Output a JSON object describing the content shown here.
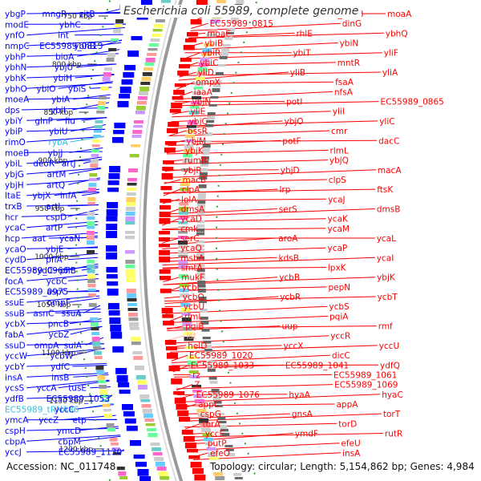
{
  "title": "Escherichia coli 55989, complete genome",
  "footer": {
    "accession_label": "Accession:",
    "accession": "NC_011748",
    "topology_label": "Topology:",
    "topology": "circular",
    "length_label": "Length:",
    "length": "5,154,862 bp",
    "genes_label": "Genes:",
    "genes": "4,984"
  },
  "colors": {
    "forward_strand": "#ff0000",
    "reverse_strand": "#0000ff",
    "rna": "#33c0e0",
    "backbone": "#999999",
    "gc_tick": "#33a033"
  },
  "ruler": [
    "750 kbp",
    "800 kbp",
    "850 kbp",
    "900 kbp",
    "950 kbp",
    "1000 kbp",
    "1050 kbp",
    "1100 kbp",
    "1150 kbp",
    "1200 kbp"
  ],
  "left_labels": [
    {
      "text": "ybgP",
      "color": "#0000ff"
    },
    {
      "text": "mngR",
      "color": "#0000ff"
    },
    {
      "text": "zitB",
      "color": "#0000ff"
    },
    {
      "text": "modE",
      "color": "#0000ff"
    },
    {
      "text": "ybhC",
      "color": "#0000ff"
    },
    {
      "text": "ynfO",
      "color": "#0000ff"
    },
    {
      "text": "int",
      "color": "#0000ff"
    },
    {
      "text": "nmpC",
      "color": "#0000ff"
    },
    {
      "text": "EC55989_0813",
      "color": "#0000ff"
    },
    {
      "text": "ybhB",
      "color": "#0000ff"
    },
    {
      "text": "ybhP",
      "color": "#0000ff"
    },
    {
      "text": "bioA",
      "color": "#0000ff"
    },
    {
      "text": "ybhN",
      "color": "#0000ff"
    },
    {
      "text": "ybjU",
      "color": "#0000ff"
    },
    {
      "text": "ybhK",
      "color": "#0000ff"
    },
    {
      "text": "ybiH",
      "color": "#0000ff"
    },
    {
      "text": "ybhO",
      "color": "#0000ff"
    },
    {
      "text": "ybiO",
      "color": "#0000ff"
    },
    {
      "text": "ybiS",
      "color": "#0000ff"
    },
    {
      "text": "moeA",
      "color": "#0000ff"
    },
    {
      "text": "ybiA",
      "color": "#0000ff"
    },
    {
      "text": "dps",
      "color": "#0000ff"
    },
    {
      "text": "ybiI",
      "color": "#0000ff"
    },
    {
      "text": "ybiY",
      "color": "#0000ff"
    },
    {
      "text": "glnP",
      "color": "#0000ff"
    },
    {
      "text": "fiu",
      "color": "#0000ff"
    },
    {
      "text": "ybiP",
      "color": "#0000ff"
    },
    {
      "text": "ybiU",
      "color": "#0000ff"
    },
    {
      "text": "rimO",
      "color": "#0000ff"
    },
    {
      "text": "rybA",
      "color": "#33c0e0"
    },
    {
      "text": "moeB",
      "color": "#0000ff"
    },
    {
      "text": "ybjJ",
      "color": "#0000ff"
    },
    {
      "text": "ybiL",
      "color": "#0000ff"
    },
    {
      "text": "deoR",
      "color": "#0000ff"
    },
    {
      "text": "artJ",
      "color": "#0000ff"
    },
    {
      "text": "ybjG",
      "color": "#0000ff"
    },
    {
      "text": "artM",
      "color": "#0000ff"
    },
    {
      "text": "ybjH",
      "color": "#0000ff"
    },
    {
      "text": "artQ",
      "color": "#0000ff"
    },
    {
      "text": "ltaE",
      "color": "#0000ff"
    },
    {
      "text": "ybjX",
      "color": "#0000ff"
    },
    {
      "text": "infA",
      "color": "#0000ff"
    },
    {
      "text": "trxB",
      "color": "#0000ff"
    },
    {
      "text": "artI",
      "color": "#0000ff"
    },
    {
      "text": "hcr",
      "color": "#0000ff"
    },
    {
      "text": "cspD",
      "color": "#0000ff"
    },
    {
      "text": "ycaC",
      "color": "#0000ff"
    },
    {
      "text": "artP",
      "color": "#0000ff"
    },
    {
      "text": "hcp",
      "color": "#0000ff"
    },
    {
      "text": "aat",
      "color": "#0000ff"
    },
    {
      "text": "ycaN",
      "color": "#0000ff"
    },
    {
      "text": "ycaO",
      "color": "#0000ff"
    },
    {
      "text": "ybjE",
      "color": "#0000ff"
    },
    {
      "text": "cydD",
      "color": "#0000ff"
    },
    {
      "text": "pflA",
      "color": "#0000ff"
    },
    {
      "text": "EC55989_0966",
      "color": "#0000ff"
    },
    {
      "text": "cydC",
      "color": "#0000ff"
    },
    {
      "text": "pflB",
      "color": "#0000ff"
    },
    {
      "text": "focA",
      "color": "#0000ff"
    },
    {
      "text": "ycbC",
      "color": "#0000ff"
    },
    {
      "text": "EC55989_0975",
      "color": "#0000ff"
    },
    {
      "text": "aspC",
      "color": "#0000ff"
    },
    {
      "text": "ssuE",
      "color": "#0000ff"
    },
    {
      "text": "ompF",
      "color": "#0000ff"
    },
    {
      "text": "ssuB",
      "color": "#0000ff"
    },
    {
      "text": "asnC",
      "color": "#0000ff"
    },
    {
      "text": "ssuA",
      "color": "#0000ff"
    },
    {
      "text": "ycbX",
      "color": "#0000ff"
    },
    {
      "text": "pncB",
      "color": "#0000ff"
    },
    {
      "text": "fabA",
      "color": "#0000ff"
    },
    {
      "text": "ycbZ",
      "color": "#0000ff"
    },
    {
      "text": "ssuD",
      "color": "#0000ff"
    },
    {
      "text": "ompA",
      "color": "#0000ff"
    },
    {
      "text": "sulA",
      "color": "#0000ff"
    },
    {
      "text": "yccW",
      "color": "#0000ff"
    },
    {
      "text": "ycbW",
      "color": "#0000ff"
    },
    {
      "text": "ycbY",
      "color": "#0000ff"
    },
    {
      "text": "ydfC",
      "color": "#0000ff"
    },
    {
      "text": "insA",
      "color": "#0000ff"
    },
    {
      "text": "insB",
      "color": "#0000ff"
    },
    {
      "text": "ycsS",
      "color": "#0000ff"
    },
    {
      "text": "yccA",
      "color": "#0000ff"
    },
    {
      "text": "tusE",
      "color": "#0000ff"
    },
    {
      "text": "ydfB",
      "color": "#0000ff"
    },
    {
      "text": "EC55989_1053",
      "color": "#0000ff"
    },
    {
      "text": "EC55989_tRNA86",
      "color": "#33c0e0"
    },
    {
      "text": "yccC",
      "color": "#0000ff"
    },
    {
      "text": "ymcA",
      "color": "#0000ff"
    },
    {
      "text": "yccZ",
      "color": "#0000ff"
    },
    {
      "text": "etp",
      "color": "#0000ff"
    },
    {
      "text": "cspH",
      "color": "#0000ff"
    },
    {
      "text": "ymcD",
      "color": "#0000ff"
    },
    {
      "text": "cbpA",
      "color": "#0000ff"
    },
    {
      "text": "cbpM",
      "color": "#0000ff"
    },
    {
      "text": "yccJ",
      "color": "#0000ff"
    },
    {
      "text": "EC55989_1130",
      "color": "#0000ff"
    }
  ],
  "right_labels": [
    {
      "text": "moaC",
      "color": "#ff0000"
    },
    {
      "text": "EC55989_0808",
      "color": "#ff0000"
    },
    {
      "text": "moaA",
      "color": "#ff0000"
    },
    {
      "text": "EC55989_0815",
      "color": "#ff0000"
    },
    {
      "text": "dinG",
      "color": "#ff0000"
    },
    {
      "text": "moaE",
      "color": "#ff0000"
    },
    {
      "text": "rhlE",
      "color": "#ff0000"
    },
    {
      "text": "ybhQ",
      "color": "#ff0000"
    },
    {
      "text": "ybiB",
      "color": "#ff0000"
    },
    {
      "text": "ybiN",
      "color": "#ff0000"
    },
    {
      "text": "ybiR",
      "color": "#ff0000"
    },
    {
      "text": "ybiT",
      "color": "#ff0000"
    },
    {
      "text": "yliF",
      "color": "#ff0000"
    },
    {
      "text": "ybiC",
      "color": "#ff0000"
    },
    {
      "text": "mntR",
      "color": "#ff0000"
    },
    {
      "text": "yliD",
      "color": "#ff0000"
    },
    {
      "text": "yliB",
      "color": "#ff0000"
    },
    {
      "text": "yliA",
      "color": "#ff0000"
    },
    {
      "text": "ompX",
      "color": "#ff0000"
    },
    {
      "text": "fsaA",
      "color": "#ff0000"
    },
    {
      "text": "iaaA",
      "color": "#ff0000"
    },
    {
      "text": "nfsA",
      "color": "#ff0000"
    },
    {
      "text": "ybjN",
      "color": "#ff0000"
    },
    {
      "text": "potI",
      "color": "#ff0000"
    },
    {
      "text": "EC55989_0865",
      "color": "#ff0000"
    },
    {
      "text": "yliE",
      "color": "#ff0000"
    },
    {
      "text": "yliI",
      "color": "#ff0000"
    },
    {
      "text": "ybjC",
      "color": "#ff0000"
    },
    {
      "text": "ybjO",
      "color": "#ff0000"
    },
    {
      "text": "yliC",
      "color": "#ff0000"
    },
    {
      "text": "bssR",
      "color": "#ff0000"
    },
    {
      "text": "cmr",
      "color": "#ff0000"
    },
    {
      "text": "ybjM",
      "color": "#ff0000"
    },
    {
      "text": "potF",
      "color": "#ff0000"
    },
    {
      "text": "dacC",
      "color": "#ff0000"
    },
    {
      "text": "ybjK",
      "color": "#ff0000"
    },
    {
      "text": "rlmL",
      "color": "#ff0000"
    },
    {
      "text": "rumB",
      "color": "#ff0000"
    },
    {
      "text": "ybjQ",
      "color": "#ff0000"
    },
    {
      "text": "ybjR",
      "color": "#ff0000"
    },
    {
      "text": "ybjD",
      "color": "#ff0000"
    },
    {
      "text": "macA",
      "color": "#ff0000"
    },
    {
      "text": "macB",
      "color": "#ff0000"
    },
    {
      "text": "clpS",
      "color": "#ff0000"
    },
    {
      "text": "clpA",
      "color": "#ff0000"
    },
    {
      "text": "lrp",
      "color": "#ff0000"
    },
    {
      "text": "ftsK",
      "color": "#ff0000"
    },
    {
      "text": "lolA",
      "color": "#ff0000"
    },
    {
      "text": "ycaJ",
      "color": "#ff0000"
    },
    {
      "text": "dmsA",
      "color": "#ff0000"
    },
    {
      "text": "serS",
      "color": "#ff0000"
    },
    {
      "text": "dmsB",
      "color": "#ff0000"
    },
    {
      "text": "ycaD",
      "color": "#ff0000"
    },
    {
      "text": "ycaK",
      "color": "#ff0000"
    },
    {
      "text": "cmk",
      "color": "#ff0000"
    },
    {
      "text": "ycaM",
      "color": "#ff0000"
    },
    {
      "text": "serC",
      "color": "#ff0000"
    },
    {
      "text": "aroA",
      "color": "#ff0000"
    },
    {
      "text": "ycaL",
      "color": "#ff0000"
    },
    {
      "text": "ycaQ",
      "color": "#ff0000"
    },
    {
      "text": "ycaP",
      "color": "#ff0000"
    },
    {
      "text": "msbA",
      "color": "#ff0000"
    },
    {
      "text": "kdsB",
      "color": "#ff0000"
    },
    {
      "text": "ycaI",
      "color": "#ff0000"
    },
    {
      "text": "smtA",
      "color": "#ff0000"
    },
    {
      "text": "lpxK",
      "color": "#ff0000"
    },
    {
      "text": "mukF",
      "color": "#ff0000"
    },
    {
      "text": "ycbB",
      "color": "#ff0000"
    },
    {
      "text": "ybjK",
      "color": "#ff0000"
    },
    {
      "text": "ycbL",
      "color": "#ff0000"
    },
    {
      "text": "pepN",
      "color": "#ff0000"
    },
    {
      "text": "ycbQ",
      "color": "#ff0000"
    },
    {
      "text": "ycbR",
      "color": "#ff0000"
    },
    {
      "text": "ycbT",
      "color": "#ff0000"
    },
    {
      "text": "ycbU",
      "color": "#ff0000"
    },
    {
      "text": "ycbS",
      "color": "#ff0000"
    },
    {
      "text": "rlmL",
      "color": "#ff0000"
    },
    {
      "text": "pqiA",
      "color": "#ff0000"
    },
    {
      "text": "pqiB",
      "color": "#ff0000"
    },
    {
      "text": "uup",
      "color": "#ff0000"
    },
    {
      "text": "rmf",
      "color": "#ff0000"
    },
    {
      "text": "ist",
      "color": "#ffaaaa"
    },
    {
      "text": "yccR",
      "color": "#ff0000"
    },
    {
      "text": "helD",
      "color": "#ff0000"
    },
    {
      "text": "yccX",
      "color": "#ff0000"
    },
    {
      "text": "yccU",
      "color": "#ff0000"
    },
    {
      "text": "EC55989_1020",
      "color": "#ff0000"
    },
    {
      "text": "dicC",
      "color": "#ff0000"
    },
    {
      "text": "EC55989_1033",
      "color": "#ff0000"
    },
    {
      "text": "EC55989_1041",
      "color": "#ff0000"
    },
    {
      "text": "ydfQ",
      "color": "#ff0000"
    },
    {
      "text": "rz",
      "color": "#ff0000"
    },
    {
      "text": "EC55989_1061",
      "color": "#ff0000"
    },
    {
      "text": "Z",
      "color": "#ff0000"
    },
    {
      "text": "EC55989_1069",
      "color": "#ff0000"
    },
    {
      "text": "EC55989_1076",
      "color": "#ff0000"
    },
    {
      "text": "hyaA",
      "color": "#ff0000"
    },
    {
      "text": "hyaC",
      "color": "#ff0000"
    },
    {
      "text": "appC",
      "color": "#ff0000"
    },
    {
      "text": "appA",
      "color": "#ff0000"
    },
    {
      "text": "cspG",
      "color": "#ff0000"
    },
    {
      "text": "gnsA",
      "color": "#ff0000"
    },
    {
      "text": "torT",
      "color": "#ff0000"
    },
    {
      "text": "torA",
      "color": "#ff0000"
    },
    {
      "text": "torD",
      "color": "#ff0000"
    },
    {
      "text": "yccE",
      "color": "#ff0000"
    },
    {
      "text": "ymdF",
      "color": "#ff0000"
    },
    {
      "text": "rutR",
      "color": "#ff0000"
    },
    {
      "text": "putP",
      "color": "#ff0000"
    },
    {
      "text": "efeU",
      "color": "#ff0000"
    },
    {
      "text": "efeO",
      "color": "#ff0000"
    },
    {
      "text": "insA",
      "color": "#ff0000"
    }
  ]
}
